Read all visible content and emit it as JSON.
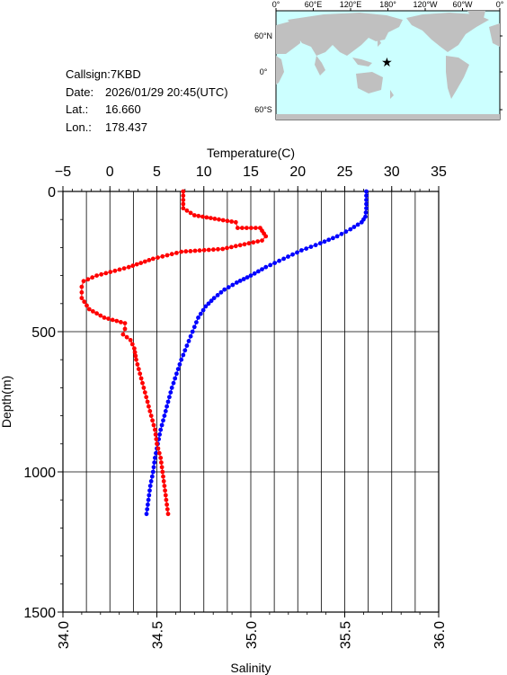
{
  "info": {
    "callsign_label": "Callsign:",
    "callsign": "7KBD",
    "date_label": "Date:",
    "date": "2026/01/29 20:45(UTC)",
    "lat_label": "Lat.:",
    "lat": "16.660",
    "lon_label": "Lon.:",
    "lon": "178.437"
  },
  "map": {
    "top_labels": [
      "0°",
      "60°E",
      "120°E",
      "180°",
      "120°W",
      "60°W",
      "0°"
    ],
    "right_labels": [
      "60°N",
      "0°",
      "60°S"
    ],
    "ocean_color": "#ccffff",
    "land_color": "#c0c0c0",
    "marker": {
      "lon": 178.437,
      "lat": 16.66,
      "color": "#ff0000"
    }
  },
  "chart_data": {
    "type": "line",
    "temperature_axis": {
      "label": "Temperature(C)",
      "range": [
        -5,
        35
      ],
      "ticks": [
        "−5",
        "0",
        "5",
        "10",
        "15",
        "20",
        "25",
        "30",
        "35"
      ]
    },
    "salinity_axis": {
      "label": "Salinity",
      "range": [
        34.0,
        36.0
      ],
      "ticks": [
        "34.0",
        "34.5",
        "35.0",
        "35.5",
        "36.0"
      ]
    },
    "depth_axis": {
      "label": "Depth(m)",
      "range": [
        0,
        1500
      ],
      "ticks": [
        "0",
        "500",
        "1000",
        "1500"
      ],
      "inverted": true
    },
    "grid": true,
    "series": [
      {
        "quantity": "temperature",
        "color": "#0000ff",
        "points": [
          [
            27.3,
            0
          ],
          [
            27.3,
            30
          ],
          [
            27.3,
            60
          ],
          [
            27.2,
            90
          ],
          [
            26.8,
            110
          ],
          [
            25.6,
            135
          ],
          [
            24.2,
            160
          ],
          [
            22.4,
            185
          ],
          [
            20.4,
            210
          ],
          [
            18.5,
            240
          ],
          [
            16.6,
            270
          ],
          [
            15.0,
            300
          ],
          [
            13.5,
            325
          ],
          [
            12.2,
            350
          ],
          [
            11.1,
            380
          ],
          [
            10.2,
            410
          ],
          [
            9.4,
            450
          ],
          [
            8.8,
            500
          ],
          [
            8.2,
            550
          ],
          [
            7.6,
            600
          ],
          [
            7.1,
            650
          ],
          [
            6.6,
            700
          ],
          [
            6.2,
            750
          ],
          [
            5.8,
            800
          ],
          [
            5.4,
            850
          ],
          [
            5.1,
            900
          ],
          [
            4.8,
            950
          ],
          [
            4.6,
            1000
          ],
          [
            4.3,
            1050
          ],
          [
            4.1,
            1100
          ],
          [
            3.9,
            1150
          ]
        ]
      },
      {
        "quantity": "salinity",
        "color": "#ff0000",
        "points": [
          [
            34.64,
            0
          ],
          [
            34.64,
            60
          ],
          [
            34.7,
            85
          ],
          [
            34.83,
            100
          ],
          [
            34.92,
            110
          ],
          [
            34.93,
            130
          ],
          [
            35.05,
            130
          ],
          [
            35.07,
            150
          ],
          [
            35.08,
            160
          ],
          [
            35.06,
            175
          ],
          [
            34.92,
            195
          ],
          [
            34.85,
            205
          ],
          [
            34.63,
            215
          ],
          [
            34.48,
            240
          ],
          [
            34.35,
            270
          ],
          [
            34.18,
            300
          ],
          [
            34.11,
            320
          ],
          [
            34.1,
            340
          ],
          [
            34.1,
            380
          ],
          [
            34.14,
            420
          ],
          [
            34.22,
            450
          ],
          [
            34.33,
            470
          ],
          [
            34.33,
            490
          ],
          [
            34.32,
            510
          ],
          [
            34.36,
            530
          ],
          [
            34.38,
            560
          ],
          [
            34.39,
            600
          ],
          [
            34.41,
            650
          ],
          [
            34.43,
            700
          ],
          [
            34.45,
            750
          ],
          [
            34.47,
            800
          ],
          [
            34.49,
            850
          ],
          [
            34.5,
            900
          ],
          [
            34.52,
            950
          ],
          [
            34.53,
            1000
          ],
          [
            34.54,
            1050
          ],
          [
            34.55,
            1100
          ],
          [
            34.56,
            1150
          ]
        ]
      }
    ]
  }
}
